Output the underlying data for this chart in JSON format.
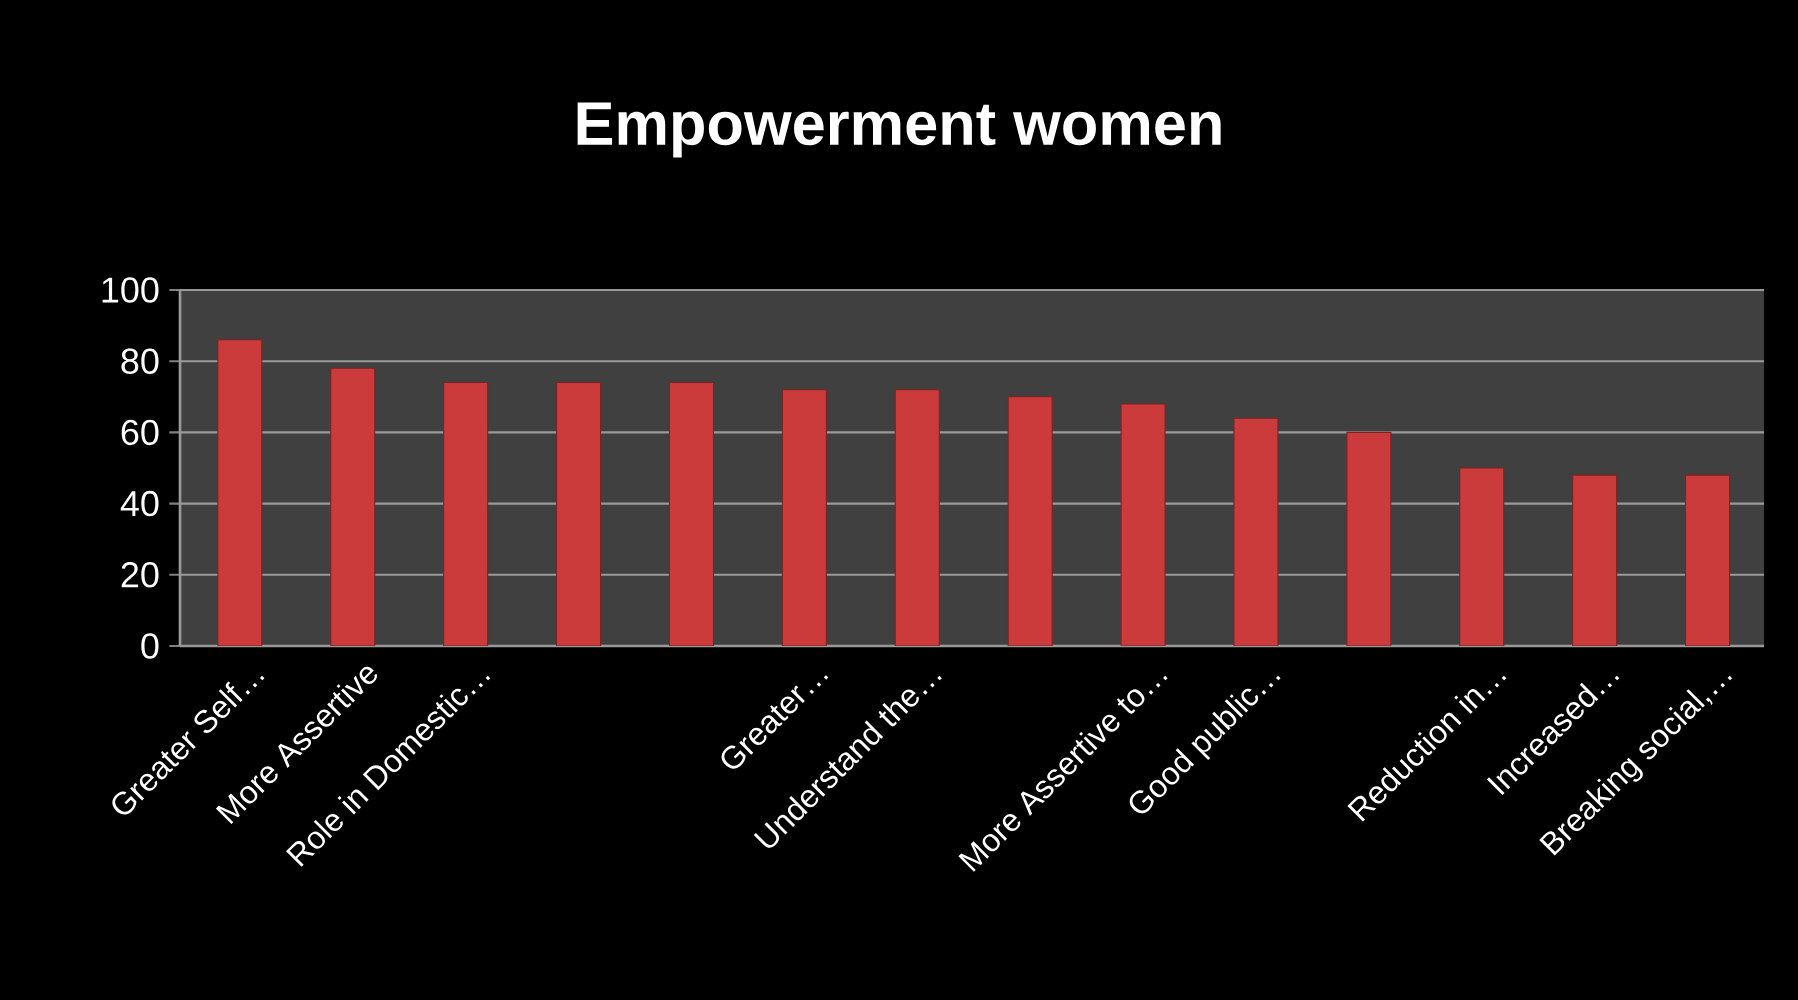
{
  "chart_data": {
    "type": "bar",
    "title": "Empowerment women",
    "categories": [
      "Greater Self…",
      "More Assertive",
      "Role in Domestic…",
      null,
      null,
      "Greater…",
      "Understand the…",
      null,
      "More Assertive to…",
      "Good public…",
      null,
      "Reduction in…",
      "Increased…",
      "Breaking social,…"
    ],
    "values": [
      86,
      78,
      74,
      74,
      74,
      72,
      72,
      70,
      68,
      64,
      60,
      50,
      48,
      48
    ],
    "color": "#cc3b3b",
    "ylim": [
      0,
      100
    ],
    "yticks": [
      0,
      20,
      40,
      60,
      80,
      100
    ],
    "grid": "y"
  }
}
